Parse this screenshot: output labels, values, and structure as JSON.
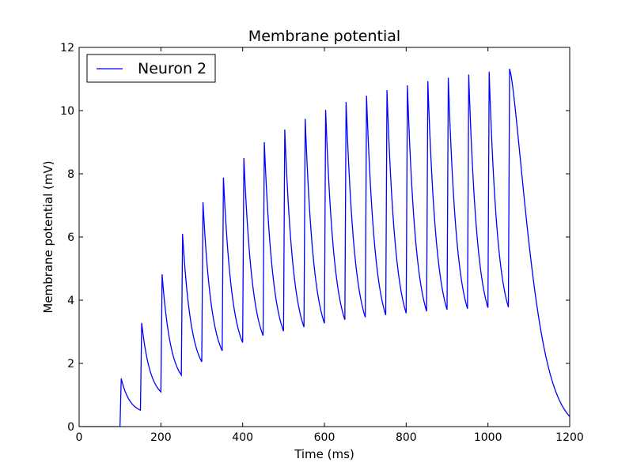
{
  "chart_data": {
    "type": "line",
    "title": "Membrane potential",
    "xlabel": "Time (ms)",
    "ylabel": "Membrane potential (mV)",
    "xlim": [
      0,
      1200
    ],
    "ylim": [
      0,
      12
    ],
    "x_ticks": [
      0,
      200,
      400,
      600,
      800,
      1000,
      1200
    ],
    "y_ticks": [
      0,
      2,
      4,
      6,
      8,
      10,
      12
    ],
    "grid": false,
    "legend_position": "top-left",
    "series": [
      {
        "name": "Neuron 2",
        "color": "#0000ff",
        "stimulus_times_ms": [
          100,
          150,
          200,
          250,
          300,
          350,
          400,
          450,
          500,
          550,
          600,
          650,
          700,
          750,
          800,
          850,
          900,
          950,
          1000,
          1050
        ],
        "peak_values_mv": [
          1.52,
          3.28,
          4.82,
          6.1,
          7.1,
          7.88,
          8.5,
          9.0,
          9.4,
          9.74,
          10.02,
          10.27,
          10.47,
          10.65,
          10.8,
          10.93,
          11.04,
          11.14,
          11.23,
          11.32
        ],
        "trough_values_mv": [
          0.52,
          1.1,
          1.63,
          2.05,
          2.4,
          2.66,
          2.88,
          3.02,
          3.15,
          3.27,
          3.38,
          3.46,
          3.53,
          3.59,
          3.65,
          3.7,
          3.73,
          3.76,
          3.78
        ],
        "end_value_mv": 0.32
      }
    ]
  }
}
